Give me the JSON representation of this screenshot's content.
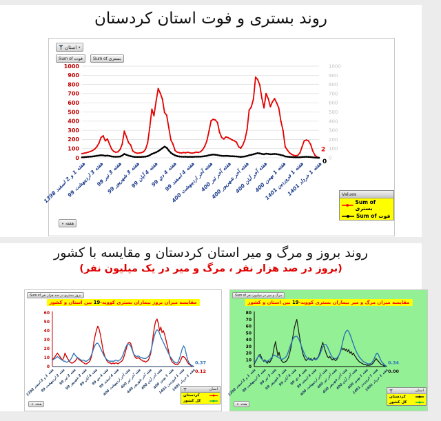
{
  "page": {
    "top_title": "روند بستری و فوت استان کردستان",
    "bottom_title": "روند بروز و مرگ و میر استان کردستان و مقایسه با کشور",
    "bottom_subtitle": "(بروز در صد هزار نفر ، مرگ و میر در یک میلیون نفر)"
  },
  "week_labels": [
    "هفته 1 و 2 اسفند 1398",
    "هفته 3 ارديبهشت 99",
    "هفته 3 تير 99",
    "هفته 3 شهريور 99",
    "هفته 4 آبان 99",
    "هفته 4 دي 99",
    "هفته 4 اسفند 99",
    "هفته آخر ارديبهشت 400",
    "هفته آخر تير 400",
    "هفته آخر شهريور 400",
    "هفته آخر آبان 400",
    "هفته 1 بهمن 400",
    "هفته 1 فروردين 1401",
    "هفته 1 خرداد 1401"
  ],
  "top_chart": {
    "filter_button_label": "استان",
    "field_buttons": {
      "deaths": "Sum of فوت",
      "admissions": "Sum of بستری"
    },
    "week_button_label": "هفته",
    "legend": {
      "header": "Values",
      "items": [
        {
          "label": "Sum of بستری",
          "color": "#ff0000"
        },
        {
          "label": "Sum of فوت",
          "color": "#000000"
        }
      ]
    }
  },
  "left_chart": {
    "field_button_label": "Sum of بروز بستری در صد هزار نفر",
    "week_button_label": "هفته",
    "title_pre": "مقایسه میزان بروز بیماران بستری کووید-",
    "title_num": "19",
    "title_post": " بین استان و کشور",
    "legend": {
      "header": "استان",
      "items": [
        {
          "label": "کردستان",
          "color": "#ff0000"
        },
        {
          "label": "کل کشور",
          "color": "#00b050"
        }
      ]
    }
  },
  "right_chart": {
    "field_button_label": "Sum of مرگ و میر در میلیون نفر",
    "week_button_label": "هفته",
    "title_pre": "مقایسه میزان مرگ و میر بیماران بستری کووید-",
    "title_num": "19",
    "title_post": " بین استان و کشور",
    "background": "#94f094",
    "legend": {
      "header": "استان",
      "items": [
        {
          "label": "کردستان",
          "color": "#1a1a1a"
        },
        {
          "label": "کل کشور",
          "color": "#00b050"
        }
      ]
    }
  },
  "chart_data": [
    {
      "type": "line",
      "title": "روند بستری و فوت استان کردستان",
      "ylim": [
        0,
        1000
      ],
      "y_tick_step": 100,
      "grid": true,
      "x_tick_labels": [
        "هفته 1 و 2 اسفند 1398",
        "هفته 3 ارديبهشت 99",
        "هفته 3 تير 99",
        "هفته 3 شهريور 99",
        "هفته 4 آبان 99",
        "هفته 4 دي 99",
        "هفته 4 اسفند 99",
        "هفته آخر ارديبهشت 400",
        "هفته آخر تير 400",
        "هفته آخر شهريور 400",
        "هفته آخر آبان 400",
        "هفته 1 بهمن 400",
        "هفته 1 فروردين 1401",
        "هفته 1 خرداد 1401"
      ],
      "series": [
        {
          "name": "Sum of بستری",
          "color": "#e30000",
          "last_point_label": "2",
          "values": [
            45,
            50,
            55,
            62,
            70,
            80,
            95,
            120,
            160,
            220,
            240,
            185,
            205,
            150,
            95,
            70,
            60,
            65,
            90,
            150,
            290,
            230,
            165,
            140,
            75,
            58,
            50,
            52,
            56,
            65,
            90,
            160,
            330,
            530,
            460,
            615,
            755,
            705,
            640,
            495,
            465,
            330,
            195,
            148,
            80,
            62,
            56,
            52,
            58,
            54,
            60,
            55,
            50,
            56,
            62,
            58,
            66,
            88,
            125,
            185,
            290,
            405,
            420,
            412,
            385,
            278,
            222,
            205,
            228,
            220,
            208,
            195,
            185,
            170,
            120,
            105,
            140,
            200,
            310,
            520,
            555,
            640,
            880,
            855,
            795,
            648,
            545,
            700,
            645,
            558,
            612,
            645,
            598,
            542,
            398,
            296,
            120,
            86,
            56,
            38,
            27,
            22,
            28,
            56,
            120,
            186,
            194,
            186,
            148,
            76,
            30,
            10,
            2
          ]
        },
        {
          "name": "Sum of فوت",
          "color": "#000000",
          "last_point_label": "0",
          "values": [
            5,
            7,
            9,
            11,
            13,
            15,
            18,
            22,
            25,
            28,
            26,
            22,
            24,
            20,
            15,
            12,
            11,
            12,
            14,
            25,
            42,
            32,
            24,
            18,
            13,
            10,
            9,
            9,
            10,
            11,
            13,
            18,
            28,
            42,
            50,
            60,
            72,
            88,
            105,
            122,
            110,
            80,
            55,
            38,
            26,
            18,
            14,
            12,
            11,
            12,
            10,
            11,
            10,
            11,
            12,
            12,
            13,
            15,
            18,
            22,
            28,
            32,
            35,
            33,
            30,
            25,
            22,
            20,
            22,
            20,
            18,
            17,
            16,
            15,
            12,
            10,
            12,
            15,
            20,
            28,
            32,
            38,
            45,
            50,
            48,
            42,
            38,
            45,
            42,
            38,
            40,
            42,
            40,
            36,
            30,
            25,
            15,
            12,
            10,
            8,
            6,
            5,
            5,
            6,
            8,
            10,
            11,
            10,
            8,
            5,
            3,
            1,
            0
          ]
        }
      ]
    },
    {
      "type": "line",
      "title": "مقایسه میزان بروز بیماران بستری کووید-19 بین استان و کشور",
      "ylim": [
        0,
        60
      ],
      "y_tick_step": 10,
      "grid": false,
      "x_tick_labels": [
        "هفته 1 و 2 اسفند 1398",
        "هفته 3 ارديبهشت 99",
        "هفته 3 تير 99",
        "هفته 3 شهريور 99",
        "هفته 4 آبان 99",
        "هفته 4 دي 99",
        "هفته 4 اسفند 99",
        "هفته آخر ارديبهشت 400",
        "هفته آخر تير 400",
        "هفته آخر شهريور 400",
        "هفته آخر آبان 400",
        "هفته 1 بهمن 400",
        "هفته 1 فروردين 1401",
        "هفته 1 خرداد 1401"
      ],
      "series": [
        {
          "name": "کردستان",
          "color": "#d00000",
          "last_point_label": "0.12",
          "values": [
            8,
            9,
            11,
            13,
            15,
            13,
            11,
            9,
            7,
            10,
            15,
            12,
            9,
            7,
            5,
            4,
            4,
            5,
            6,
            8,
            10,
            8,
            7,
            6,
            5,
            4,
            3,
            3,
            4,
            5,
            7,
            11,
            18,
            28,
            35,
            41,
            45,
            42,
            36,
            28,
            20,
            14,
            10,
            7,
            5,
            4,
            4,
            3,
            4,
            3,
            4,
            4,
            3,
            4,
            5,
            6,
            8,
            12,
            17,
            22,
            26,
            27,
            26,
            22,
            16,
            12,
            10,
            9,
            10,
            9,
            8,
            7,
            6,
            6,
            5,
            6,
            7,
            10,
            15,
            24,
            35,
            45,
            51,
            53,
            48,
            40,
            44,
            38,
            40,
            36,
            30,
            24,
            18,
            12,
            8,
            5,
            4,
            3,
            2,
            2,
            3,
            5,
            8,
            11,
            11,
            10,
            8,
            5,
            3,
            2,
            1,
            0.5,
            0.12
          ]
        },
        {
          "name": "کل کشور",
          "color": "#2e75b6",
          "last_point_label": "0.37",
          "values": [
            7,
            8,
            9,
            10,
            11,
            10,
            9,
            8,
            7,
            6,
            6,
            5,
            5,
            6,
            7,
            9,
            12,
            15,
            13,
            11,
            10,
            9,
            8,
            7,
            7,
            7,
            6,
            6,
            7,
            8,
            10,
            13,
            17,
            21,
            24,
            26,
            26,
            24,
            21,
            18,
            15,
            12,
            10,
            8,
            7,
            6,
            6,
            6,
            6,
            6,
            7,
            7,
            6,
            7,
            8,
            10,
            13,
            17,
            21,
            24,
            25,
            25,
            23,
            20,
            16,
            13,
            12,
            11,
            12,
            11,
            10,
            10,
            9,
            9,
            9,
            10,
            11,
            13,
            17,
            23,
            29,
            35,
            39,
            41,
            40,
            37,
            33,
            30,
            27,
            24,
            21,
            18,
            15,
            12,
            10,
            8,
            6,
            5,
            4,
            4,
            6,
            10,
            15,
            20,
            23,
            21,
            15,
            9,
            5,
            3,
            1.5,
            0.8,
            0.37
          ]
        }
      ]
    },
    {
      "type": "line",
      "title": "مقایسه میزان مرگ و میر بیماران بستری کووید-19 بین استان و کشور",
      "ylim": [
        0,
        80
      ],
      "y_tick_step": 10,
      "grid": false,
      "x_tick_labels": [
        "هفته 1 و 2 اسفند 1398",
        "هفته 3 ارديبهشت 99",
        "هفته 3 تير 99",
        "هفته 3 شهريور 99",
        "هفته 4 آبان 99",
        "هفته 4 دي 99",
        "هفته 4 اسفند 99",
        "هفته آخر ارديبهشت 400",
        "هفته آخر تير 400",
        "هفته آخر شهريور 400",
        "هفته آخر آبان 400",
        "هفته 1 بهمن 400",
        "هفته 1 فروردين 1401",
        "هفته 1 خرداد 1401"
      ],
      "series": [
        {
          "name": "کردستان",
          "color": "#1a1a1a",
          "last_point_label": "0.00",
          "values": [
            4,
            7,
            10,
            14,
            17,
            18,
            14,
            10,
            8,
            10,
            7,
            5,
            8,
            6,
            9,
            12,
            20,
            30,
            37,
            26,
            16,
            21,
            14,
            9,
            7,
            6,
            7,
            8,
            10,
            14,
            20,
            28,
            38,
            48,
            58,
            65,
            70,
            60,
            48,
            38,
            28,
            20,
            15,
            11,
            9,
            11,
            13,
            10,
            12,
            9,
            11,
            13,
            10,
            12,
            14,
            18,
            24,
            30,
            36,
            30,
            24,
            19,
            15,
            13,
            15,
            12,
            10,
            12,
            10,
            9,
            11,
            14,
            18,
            22,
            28,
            25,
            27,
            24,
            26,
            22,
            25,
            20,
            22,
            18,
            20,
            16,
            14,
            11,
            9,
            7,
            6,
            5,
            4,
            3,
            3,
            2,
            2,
            2,
            2,
            3,
            4,
            6,
            9,
            12,
            10,
            8,
            6,
            4,
            3,
            2,
            1,
            0.5,
            0
          ]
        },
        {
          "name": "کل کشور",
          "color": "#2e75b6",
          "last_point_label": "0.34",
          "values": [
            6,
            8,
            11,
            14,
            16,
            14,
            12,
            10,
            9,
            8,
            8,
            8,
            9,
            10,
            12,
            14,
            16,
            17,
            16,
            15,
            14,
            13,
            12,
            11,
            11,
            12,
            13,
            15,
            18,
            23,
            28,
            33,
            38,
            42,
            44,
            45,
            45,
            43,
            40,
            35,
            30,
            25,
            21,
            17,
            14,
            12,
            11,
            10,
            10,
            10,
            11,
            11,
            10,
            11,
            13,
            16,
            20,
            25,
            29,
            32,
            33,
            32,
            29,
            25,
            21,
            17,
            14,
            13,
            12,
            12,
            13,
            15,
            18,
            23,
            30,
            38,
            45,
            50,
            53,
            54,
            52,
            48,
            43,
            38,
            33,
            28,
            24,
            20,
            17,
            14,
            12,
            10,
            8,
            7,
            6,
            5,
            4,
            4,
            4,
            5,
            7,
            10,
            14,
            18,
            20,
            18,
            14,
            10,
            7,
            5,
            3,
            1.5,
            0.34
          ]
        }
      ]
    }
  ]
}
